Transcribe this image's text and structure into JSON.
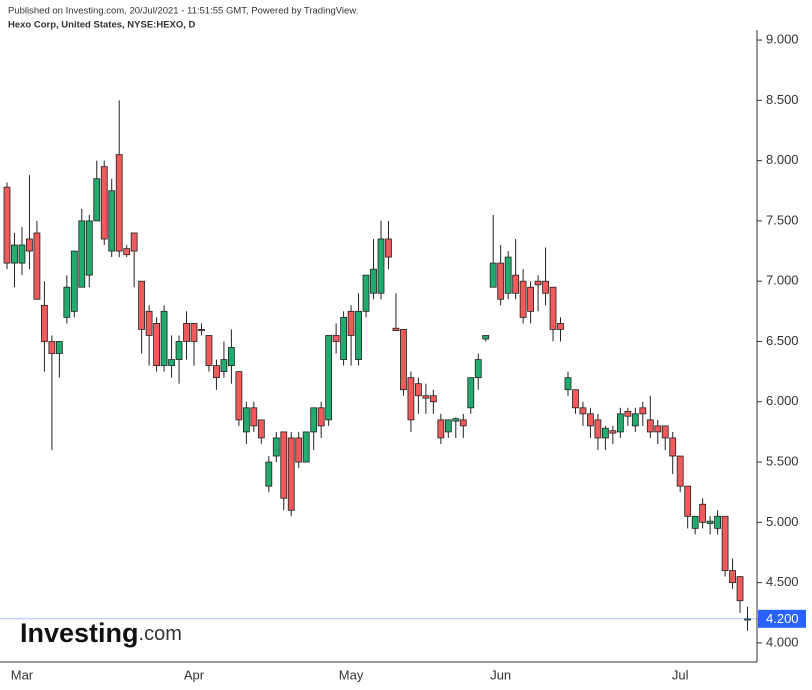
{
  "chart_data": {
    "type": "candlestick",
    "published": "Published on Investing.com, 20/Jul/2021 - 11:51:55 GMT, Powered by TradingView.",
    "title": "Hexo Corp, United States, NYSE:HEXO, D",
    "logo": {
      "brand": "Investing",
      "suffix": ".com"
    },
    "categories": [
      null,
      null,
      "Mar",
      null,
      null,
      null,
      null,
      null,
      null,
      null,
      null,
      null,
      null,
      null,
      null,
      null,
      null,
      null,
      null,
      null,
      null,
      null,
      null,
      null,
      null,
      "Apr",
      null,
      null,
      null,
      null,
      null,
      null,
      null,
      null,
      null,
      null,
      null,
      null,
      null,
      null,
      null,
      null,
      null,
      null,
      null,
      null,
      "May",
      null,
      null,
      null,
      null,
      null,
      null,
      null,
      null,
      null,
      null,
      null,
      null,
      null,
      null,
      null,
      null,
      null,
      null,
      null,
      "Jun",
      null,
      null,
      null,
      null,
      null,
      null,
      null,
      null,
      null,
      null,
      null,
      null,
      null,
      null,
      null,
      null,
      null,
      null,
      null,
      null,
      null,
      null,
      null,
      "Jul",
      null,
      null,
      null,
      null,
      null,
      null,
      null,
      null,
      null
    ],
    "open": [
      7.78,
      7.15,
      7.15,
      7.35,
      7.4,
      6.8,
      6.5,
      6.4,
      6.7,
      6.75,
      6.95,
      7.05,
      7.5,
      7.95,
      7.25,
      8.05,
      7.27,
      7.4,
      7.0,
      6.75,
      6.65,
      6.3,
      6.3,
      6.35,
      6.65,
      6.65,
      6.6,
      6.55,
      6.3,
      6.25,
      6.3,
      6.25,
      5.75,
      5.95,
      5.85,
      5.3,
      5.55,
      5.75,
      5.7,
      5.7,
      5.5,
      5.75,
      5.95,
      5.85,
      6.55,
      6.35,
      6.75,
      6.35,
      6.75,
      6.9,
      6.9,
      7.35,
      6.61,
      6.6,
      6.2,
      6.15,
      6.05,
      6.05,
      5.85,
      5.75,
      5.84,
      5.85,
      5.95,
      6.2,
      6.52,
      6.95,
      7.15,
      6.9,
      7.05,
      7.0,
      6.95,
      7.0,
      7.0,
      6.95,
      6.65,
      6.1,
      6.1,
      5.95,
      5.9,
      5.85,
      5.7,
      5.76,
      5.75,
      5.92,
      5.8,
      5.95,
      5.85,
      5.8,
      5.8,
      5.7,
      5.55,
      5.3,
      4.95,
      5.15,
      4.99,
      4.95,
      5.05,
      4.6,
      4.55,
      4.19
    ],
    "high": [
      7.82,
      7.4,
      7.45,
      7.88,
      7.5,
      7.0,
      6.55,
      6.5,
      7.05,
      7.25,
      7.6,
      7.55,
      8.0,
      8.0,
      7.85,
      8.5,
      7.3,
      7.4,
      7.0,
      6.8,
      6.7,
      6.8,
      6.55,
      6.55,
      6.75,
      6.65,
      6.65,
      6.55,
      6.35,
      6.5,
      6.6,
      6.25,
      6.0,
      6.0,
      5.85,
      5.55,
      5.75,
      5.75,
      5.75,
      5.75,
      5.75,
      5.95,
      6.0,
      6.55,
      6.65,
      6.75,
      6.8,
      6.9,
      7.05,
      7.35,
      7.5,
      7.5,
      6.9,
      6.6,
      6.25,
      6.2,
      6.15,
      6.1,
      5.9,
      5.85,
      5.87,
      5.9,
      6.2,
      6.4,
      6.55,
      7.55,
      7.3,
      7.25,
      7.35,
      7.1,
      7.0,
      7.05,
      7.28,
      6.95,
      6.7,
      6.25,
      6.1,
      6.0,
      5.95,
      5.9,
      5.8,
      5.8,
      5.95,
      5.95,
      5.95,
      6.0,
      6.05,
      5.85,
      5.8,
      5.75,
      5.55,
      5.3,
      5.05,
      5.2,
      5.05,
      5.1,
      5.05,
      4.7,
      4.55,
      4.3
    ],
    "low": [
      7.1,
      6.95,
      7.05,
      7.1,
      6.85,
      6.25,
      5.6,
      6.2,
      6.65,
      6.7,
      6.95,
      6.95,
      7.5,
      7.3,
      7.2,
      7.2,
      7.2,
      6.95,
      6.4,
      6.3,
      6.25,
      6.25,
      6.2,
      6.15,
      6.35,
      6.3,
      6.55,
      6.25,
      6.1,
      6.2,
      6.15,
      5.8,
      5.65,
      5.75,
      5.65,
      5.25,
      5.5,
      5.1,
      5.05,
      5.45,
      5.5,
      5.6,
      5.7,
      5.8,
      6.4,
      6.3,
      6.3,
      6.3,
      6.7,
      6.85,
      6.85,
      7.1,
      6.6,
      6.05,
      5.75,
      5.9,
      5.9,
      5.9,
      5.65,
      5.7,
      5.7,
      5.7,
      5.9,
      6.1,
      6.5,
      6.95,
      6.8,
      6.85,
      6.85,
      6.65,
      6.65,
      6.75,
      6.8,
      6.5,
      6.5,
      6.05,
      5.9,
      5.8,
      5.7,
      5.6,
      5.6,
      5.65,
      5.7,
      5.8,
      5.75,
      5.8,
      5.7,
      5.65,
      5.6,
      5.4,
      5.25,
      4.95,
      4.9,
      4.95,
      4.9,
      4.9,
      4.55,
      4.45,
      4.25,
      4.1
    ],
    "close": [
      7.15,
      7.3,
      7.3,
      7.25,
      6.85,
      6.5,
      6.4,
      6.5,
      6.95,
      7.25,
      7.5,
      7.5,
      7.85,
      7.35,
      7.75,
      7.25,
      7.22,
      7.25,
      6.6,
      6.55,
      6.3,
      6.75,
      6.35,
      6.5,
      6.5,
      6.5,
      6.59,
      6.3,
      6.2,
      6.35,
      6.45,
      5.85,
      5.95,
      5.8,
      5.7,
      5.5,
      5.7,
      5.2,
      5.1,
      5.5,
      5.75,
      5.95,
      5.8,
      6.55,
      6.5,
      6.7,
      6.55,
      6.75,
      7.05,
      7.1,
      7.35,
      7.2,
      6.59,
      6.1,
      5.85,
      6.05,
      6.03,
      6.0,
      5.7,
      5.85,
      5.86,
      5.8,
      6.2,
      6.35,
      6.55,
      7.15,
      6.85,
      7.2,
      6.9,
      6.7,
      6.75,
      6.97,
      6.9,
      6.6,
      6.6,
      6.2,
      5.95,
      5.9,
      5.8,
      5.7,
      5.78,
      5.74,
      5.9,
      5.88,
      5.9,
      5.9,
      5.75,
      5.75,
      5.7,
      5.55,
      5.3,
      5.05,
      5.05,
      5.0,
      5.01,
      5.05,
      4.6,
      4.5,
      4.35,
      4.2
    ],
    "up_color": "#22ab6e",
    "down_color": "#ef5a5a",
    "ylim": [
      3.85,
      9.1
    ],
    "yticks": [
      {
        "value": 4,
        "label": "4.000"
      },
      {
        "value": 4.5,
        "label": "4.500"
      },
      {
        "value": 5,
        "label": "5.000"
      },
      {
        "value": 5.5,
        "label": "5.500"
      },
      {
        "value": 6,
        "label": "6.000"
      },
      {
        "value": 6.5,
        "label": "6.500"
      },
      {
        "value": 7,
        "label": "7.000"
      },
      {
        "value": 7.5,
        "label": "7.500"
      },
      {
        "value": 8,
        "label": "8.000"
      },
      {
        "value": 8.5,
        "label": "8.500"
      },
      {
        "value": 9,
        "label": "9.000"
      }
    ],
    "last_price": {
      "value": 4.2,
      "label": "4.200"
    },
    "last_price_color": "#2962ff"
  }
}
